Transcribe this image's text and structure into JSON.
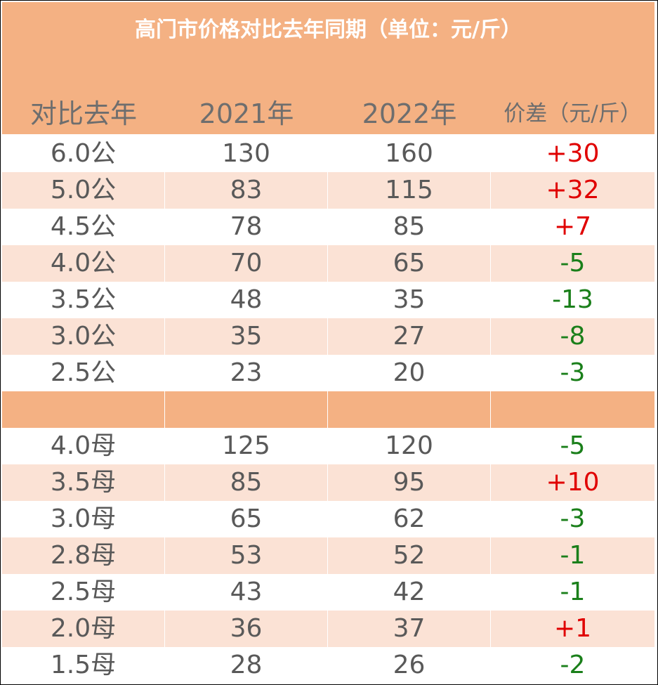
{
  "title": "高门市价格对比去年同期（单位：元/斤）",
  "headers": [
    "对比去年",
    "2021年",
    "2022年",
    "价差（元/斤）"
  ],
  "rows_male": [
    {
      "spec": "6.0公",
      "y2021": "130",
      "y2022": "160",
      "diff": "+30"
    },
    {
      "spec": "5.0公",
      "y2021": "83",
      "y2022": "115",
      "diff": "+32"
    },
    {
      "spec": "4.5公",
      "y2021": "78",
      "y2022": "85",
      "diff": "+7"
    },
    {
      "spec": "4.0公",
      "y2021": "70",
      "y2022": "65",
      "diff": "-5"
    },
    {
      "spec": "3.5公",
      "y2021": "48",
      "y2022": "35",
      "diff": "-13"
    },
    {
      "spec": "3.0公",
      "y2021": "35",
      "y2022": "27",
      "diff": "-8"
    },
    {
      "spec": "2.5公",
      "y2021": "23",
      "y2022": "20",
      "diff": "-3"
    }
  ],
  "rows_female": [
    {
      "spec": "4.0母",
      "y2021": "125",
      "y2022": "120",
      "diff": "-5"
    },
    {
      "spec": "3.5母",
      "y2021": "85",
      "y2022": "95",
      "diff": "+10"
    },
    {
      "spec": "3.0母",
      "y2021": "65",
      "y2022": "62",
      "diff": "-3"
    },
    {
      "spec": "2.8母",
      "y2021": "53",
      "y2022": "52",
      "diff": "-1"
    },
    {
      "spec": "2.5母",
      "y2021": "43",
      "y2022": "42",
      "diff": "-1"
    },
    {
      "spec": "2.0母",
      "y2021": "36",
      "y2022": "37",
      "diff": "+1"
    },
    {
      "spec": "1.5母",
      "y2021": "28",
      "y2022": "26",
      "diff": "-2"
    }
  ],
  "colors": {
    "header_bg": "#f4b183",
    "stripe_bg": "#fbe2d5",
    "positive": "#e00000",
    "negative": "#1a7f1a",
    "text": "#595959"
  }
}
